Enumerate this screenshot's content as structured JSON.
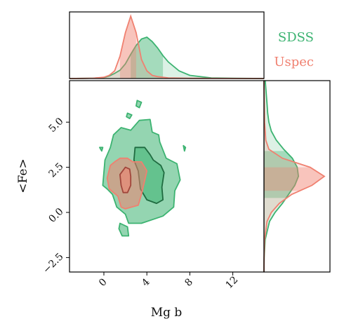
{
  "chart_data": {
    "type": "contour",
    "xlabel": "Mg b",
    "ylabel": "<Fe>",
    "xlim": [
      -3.2,
      14.9
    ],
    "ylim": [
      -3.3,
      7.3
    ],
    "x_ticks": [
      0,
      4,
      8,
      12
    ],
    "x_tick_labels": [
      "0",
      "4",
      "8",
      "12"
    ],
    "y_ticks": [
      -2.5,
      0.0,
      2.5,
      5.0
    ],
    "y_tick_labels": [
      "−2.5",
      "0.0",
      "2.5",
      "5.0"
    ],
    "legend": {
      "position": "top-right",
      "entries": [
        "SDSS",
        "Uspec"
      ]
    },
    "series": [
      {
        "name": "SDSS",
        "color": "#3cb371",
        "contours": [
          {
            "level": "outer",
            "polygons": [
              [
                [
                  -0.1,
                  1.5
                ],
                [
                  0.1,
                  2.9
                ],
                [
                  0.6,
                  3.6
                ],
                [
                  0.9,
                  4.3
                ],
                [
                  1.6,
                  4.7
                ],
                [
                  2.5,
                  4.55
                ],
                [
                  3.3,
                  5.1
                ],
                [
                  4.3,
                  5.15
                ],
                [
                  4.5,
                  4.45
                ],
                [
                  5.1,
                  4.3
                ],
                [
                  5.2,
                  3.9
                ],
                [
                  5.8,
                  3.0
                ],
                [
                  6.8,
                  2.7
                ],
                [
                  7.1,
                  1.8
                ],
                [
                  6.6,
                  1.2
                ],
                [
                  6.5,
                  0.3
                ],
                [
                  5.5,
                  -0.2
                ],
                [
                  3.5,
                  -0.6
                ],
                [
                  2.3,
                  -0.6
                ],
                [
                  2.0,
                  -0.1
                ],
                [
                  1.2,
                  0.3
                ],
                [
                  0.8,
                  1.0
                ],
                [
                  0.3,
                  1.3
                ]
              ],
              [
                [
                  1.5,
                  -0.6
                ],
                [
                  2.2,
                  -0.8
                ],
                [
                  2.3,
                  -1.3
                ],
                [
                  1.7,
                  -1.3
                ],
                [
                  1.4,
                  -0.9
                ]
              ],
              [
                [
                  3.1,
                  6.2
                ],
                [
                  3.5,
                  6.1
                ],
                [
                  3.3,
                  5.8
                ],
                [
                  3.0,
                  5.9
                ]
              ],
              [
                [
                  2.2,
                  5.5
                ],
                [
                  2.6,
                  5.4
                ],
                [
                  2.4,
                  5.2
                ],
                [
                  2.1,
                  5.3
                ]
              ],
              [
                [
                  -0.4,
                  3.6
                ],
                [
                  -0.1,
                  3.6
                ],
                [
                  -0.2,
                  3.4
                ]
              ],
              [
                [
                  7.4,
                  3.7
                ],
                [
                  7.6,
                  3.6
                ],
                [
                  7.5,
                  3.4
                ]
              ]
            ]
          },
          {
            "level": "inner",
            "polygons": [
              [
                [
                  2.9,
                  3.6
                ],
                [
                  3.8,
                  3.6
                ],
                [
                  4.3,
                  3.2
                ],
                [
                  4.6,
                  2.9
                ],
                [
                  5.3,
                  2.6
                ],
                [
                  5.6,
                  2.2
                ],
                [
                  5.4,
                  1.4
                ],
                [
                  5.5,
                  0.7
                ],
                [
                  4.9,
                  0.5
                ],
                [
                  4.0,
                  0.7
                ],
                [
                  3.4,
                  1.3
                ],
                [
                  3.2,
                  2.3
                ],
                [
                  2.8,
                  2.9
                ]
              ]
            ]
          }
        ],
        "marginal_x": {
          "x": [
            -3.2,
            -2,
            -1,
            0,
            0.5,
            1,
            1.5,
            2,
            2.5,
            3,
            3.5,
            4,
            4.5,
            5,
            5.5,
            6,
            7,
            8,
            10,
            12,
            14.9
          ],
          "density": [
            0,
            0.002,
            0.005,
            0.015,
            0.04,
            0.08,
            0.13,
            0.23,
            0.38,
            0.52,
            0.62,
            0.65,
            0.58,
            0.48,
            0.36,
            0.26,
            0.12,
            0.05,
            0.01,
            0.003,
            0
          ],
          "shaded_band": [
            2.5,
            5.5
          ]
        },
        "marginal_y": {
          "y": [
            -3.3,
            -2.5,
            -1.5,
            -0.5,
            0,
            0.5,
            1,
            1.5,
            2,
            2.5,
            3,
            3.5,
            4,
            4.5,
            5,
            5.5,
            6,
            7.3
          ],
          "density": [
            0,
            0.003,
            0.02,
            0.09,
            0.18,
            0.3,
            0.4,
            0.5,
            0.56,
            0.54,
            0.46,
            0.32,
            0.2,
            0.12,
            0.08,
            0.06,
            0.05,
            0.02
          ],
          "shaded_band": [
            0.8,
            3.4
          ]
        }
      },
      {
        "name": "Uspec",
        "color": "#f08070",
        "contours": [
          {
            "level": "outer",
            "polygons": [
              [
                [
                  0.3,
                  1.9
                ],
                [
                  0.6,
                  2.6
                ],
                [
                  1.0,
                  2.8
                ],
                [
                  1.5,
                  3.0
                ],
                [
                  2.2,
                  3.0
                ],
                [
                  2.7,
                  2.8
                ],
                [
                  3.5,
                  2.8
                ],
                [
                  3.8,
                  2.5
                ],
                [
                  4.0,
                  2.3
                ],
                [
                  3.5,
                  1.0
                ],
                [
                  3.2,
                  0.4
                ],
                [
                  2.6,
                  0.3
                ],
                [
                  2.0,
                  0.2
                ],
                [
                  1.6,
                  0.3
                ],
                [
                  1.3,
                  0.9
                ],
                [
                  0.5,
                  1.3
                ]
              ]
            ]
          },
          {
            "level": "inner",
            "polygons": [
              [
                [
                  1.5,
                  2.1
                ],
                [
                  2.0,
                  2.5
                ],
                [
                  2.4,
                  2.4
                ],
                [
                  2.5,
                  2.0
                ],
                [
                  2.5,
                  1.5
                ],
                [
                  2.2,
                  1.1
                ],
                [
                  1.8,
                  1.1
                ],
                [
                  1.6,
                  1.5
                ]
              ]
            ]
          }
        ],
        "marginal_x": {
          "x": [
            -3.2,
            -2,
            -1,
            0,
            0.5,
            1,
            1.5,
            2,
            2.5,
            3,
            3.5,
            4,
            4.5,
            5,
            6,
            8,
            14.9
          ],
          "density": [
            0,
            0.002,
            0.006,
            0.02,
            0.05,
            0.12,
            0.35,
            0.72,
            0.98,
            0.72,
            0.3,
            0.12,
            0.05,
            0.03,
            0.01,
            0.003,
            0
          ],
          "shaded_band": [
            1.5,
            3.0
          ]
        },
        "marginal_y": {
          "y": [
            -3.3,
            -2.5,
            -1.5,
            -0.5,
            0,
            0.5,
            1,
            1.5,
            2,
            2.5,
            3,
            3.5,
            4,
            5,
            7.3
          ],
          "density": [
            0,
            0.002,
            0.01,
            0.05,
            0.12,
            0.25,
            0.45,
            0.78,
            0.98,
            0.75,
            0.3,
            0.08,
            0.03,
            0.01,
            0
          ],
          "shaded_band": [
            1.2,
            2.5
          ]
        }
      }
    ]
  }
}
